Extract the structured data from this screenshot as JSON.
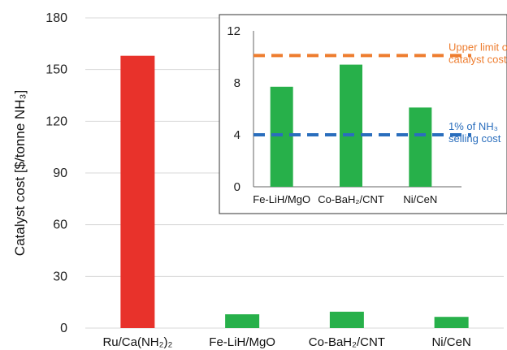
{
  "chart_data": [
    {
      "type": "bar",
      "ylabel": "Catalyst cost [$/tonne NH₃]",
      "categories": [
        "Ru/Ca(NH₂)₂",
        "Fe-LiH/MgO",
        "Co-BaH₂/CNT",
        "Ni/CeN"
      ],
      "values": [
        158,
        8,
        9.5,
        6.5
      ],
      "bar_colors": [
        "#e8322b",
        "#27b04a",
        "#27b04a",
        "#27b04a"
      ],
      "ylim": [
        0,
        180
      ],
      "yticks": [
        0,
        30,
        60,
        90,
        120,
        150,
        180
      ],
      "grid": true
    },
    {
      "type": "bar",
      "categories": [
        "Fe-LiH/MgO",
        "Co-BaH₂/CNT",
        "Ni/CeN"
      ],
      "values": [
        7.7,
        9.4,
        6.1
      ],
      "bar_color": "#27b04a",
      "ylim": [
        0,
        12
      ],
      "yticks": [
        0,
        4,
        8,
        12
      ],
      "grid": false,
      "reference_lines": [
        {
          "value": 10.1,
          "label_lines": [
            "Upper limit of",
            "catalyst cost"
          ],
          "color": "#ee7d2f",
          "style": "dashed"
        },
        {
          "value": 4.0,
          "label_lines": [
            "1% of NH₃",
            "selling cost"
          ],
          "color": "#2a6ebd",
          "style": "dashed"
        }
      ]
    }
  ]
}
